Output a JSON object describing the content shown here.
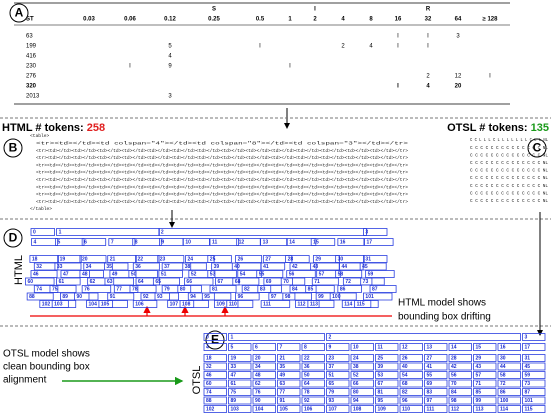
{
  "panels": {
    "a": "A",
    "b": "B",
    "c": "C",
    "d": "D",
    "e": "E"
  },
  "table": {
    "group_header": [
      null,
      null,
      null,
      null,
      "S",
      null,
      null,
      "I",
      null,
      null,
      null,
      "R",
      null,
      null
    ],
    "columns": [
      "ST",
      "0.03",
      "0.06",
      "0.12",
      "0.25",
      "0.5",
      "1",
      "2",
      "4",
      "8",
      "16",
      "32",
      "64",
      "≥ 128"
    ],
    "rows": [
      [
        "63",
        null,
        null,
        null,
        null,
        null,
        null,
        null,
        null,
        null,
        "I",
        "I",
        "3",
        null
      ],
      [
        "199",
        null,
        null,
        "5",
        null,
        "I",
        null,
        null,
        "2",
        "4",
        "I",
        "I",
        null,
        null
      ],
      [
        "416",
        null,
        null,
        "4",
        null,
        null,
        null,
        null,
        null,
        null,
        null,
        null,
        null,
        null
      ],
      [
        "230",
        null,
        "I",
        "9",
        null,
        null,
        "I",
        null,
        null,
        null,
        null,
        null,
        null,
        null
      ],
      [
        "276",
        null,
        null,
        null,
        null,
        null,
        null,
        null,
        null,
        null,
        null,
        "2",
        "12",
        "I"
      ],
      [
        "320",
        null,
        null,
        null,
        null,
        null,
        null,
        null,
        null,
        null,
        "I",
        "4",
        "20",
        null
      ],
      [
        "2013",
        null,
        null,
        "3",
        null,
        null,
        null,
        null,
        null,
        null,
        null,
        null,
        null,
        null
      ]
    ],
    "bold_rows": [
      5
    ]
  },
  "html_tokens": {
    "label": "HTML # tokens:",
    "count": 258
  },
  "otsl_tokens": {
    "label": "OTSL # tokens:",
    "count": 135
  },
  "html_code": [
    "<table>",
    "<tr><td></td><td colspan=\"4\"></td><td colspan=\"8\"></td><td colspan=\"3\"></td></tr>",
    "<tr><td></td><td></td><td></td><td></td><td></td><td></td><td></td><td></td><td></td><td></td><td></td><td></td><td></td><td></td></tr>",
    "<tr><td></td><td></td><td></td><td></td><td></td><td></td><td></td><td></td><td></td><td></td><td></td><td></td><td></td><td></td></tr>",
    "<tr><td></td><td></td><td></td><td></td><td></td><td></td><td></td><td></td><td></td><td></td><td></td><td></td><td></td><td></td></tr>",
    "<tr><td></td><td></td><td></td><td></td><td></td><td></td><td></td><td></td><td></td><td></td><td></td><td></td><td></td><td></td></tr>",
    "<tr><td></td><td></td><td></td><td></td><td></td><td></td><td></td><td></td><td></td><td></td><td></td><td></td><td></td><td></td></tr>",
    "<tr><td></td><td></td><td></td><td></td><td></td><td></td><td></td><td></td><td></td><td></td><td></td><td></td><td></td><td></td></tr>",
    "<tr><td></td><td></td><td></td><td></td><td></td><td></td><td></td><td></td><td></td><td></td><td></td><td></td><td></td><td></td></tr>",
    "<tr><td></td><td></td><td></td><td></td><td></td><td></td><td></td><td></td><td></td><td></td><td></td><td></td><td></td><td></td></tr>",
    "</table>"
  ],
  "otsl_code": [
    "C C L L L C L L L L L L L C L L NL",
    "C C C C C C C C C C C C C C NL",
    "C C C C C C C C C C C C C C NL",
    "C C C C C C C C C C C C C C NL",
    "C C C C C C C C C C C C C C NL",
    "C C C C C C C C C C C C C C NL",
    "C C C C C C C C C C C C C C NL",
    "C C C C C C C C C C C C C C NL",
    "C C C C C C C C C C C C C C NL"
  ],
  "html_boxes": {
    "label": "HTML",
    "rows": [
      [
        0,
        1,
        2,
        3
      ],
      [
        4,
        5,
        6,
        7,
        8,
        9,
        10,
        11,
        12,
        13,
        14,
        15,
        16,
        17
      ],
      [
        18,
        19,
        20,
        21,
        22,
        23,
        24,
        25,
        26,
        27,
        28,
        29,
        30,
        31
      ],
      [
        32,
        33,
        34,
        35,
        36,
        37,
        38,
        39,
        40,
        41,
        42,
        43,
        44,
        45
      ],
      [
        46,
        47,
        48,
        49,
        50,
        51,
        52,
        53,
        54,
        55,
        56,
        57,
        58,
        59
      ],
      [
        60,
        61,
        62,
        63,
        64,
        65,
        66,
        67,
        68,
        69,
        70,
        71,
        72,
        73
      ],
      [
        74,
        75,
        76,
        77,
        78,
        79,
        80,
        81,
        82,
        83,
        84,
        85,
        86,
        87
      ],
      [
        88,
        89,
        90,
        91,
        92,
        93,
        94,
        95,
        96,
        97,
        98,
        99,
        100,
        101
      ],
      [
        102,
        103,
        104,
        105,
        106,
        107,
        108,
        109,
        110,
        111,
        112,
        113,
        114,
        115
      ]
    ]
  },
  "html_note": [
    "HTML model shows",
    "bounding box drifting"
  ],
  "otsl_boxes": {
    "label": "OTSL",
    "rows": [
      [
        0,
        1,
        2,
        3
      ],
      [
        4,
        5,
        6,
        7,
        8,
        9,
        10,
        11,
        12,
        13,
        14,
        15,
        16,
        17
      ],
      [
        18,
        19,
        20,
        21,
        22,
        23,
        24,
        25,
        26,
        27,
        28,
        29,
        30,
        31
      ],
      [
        32,
        33,
        34,
        35,
        36,
        37,
        38,
        39,
        40,
        41,
        42,
        43,
        44,
        45
      ],
      [
        46,
        47,
        48,
        49,
        50,
        51,
        52,
        53,
        54,
        55,
        56,
        57,
        58,
        59
      ],
      [
        60,
        61,
        62,
        63,
        64,
        65,
        66,
        67,
        68,
        69,
        70,
        71,
        72,
        73
      ],
      [
        74,
        75,
        76,
        77,
        78,
        79,
        80,
        81,
        82,
        83,
        84,
        85,
        86,
        87
      ],
      [
        88,
        89,
        90,
        91,
        92,
        93,
        94,
        95,
        96,
        97,
        98,
        99,
        100,
        101
      ],
      [
        102,
        103,
        104,
        105,
        106,
        107,
        108,
        109,
        110,
        111,
        112,
        113,
        114,
        115
      ]
    ]
  },
  "otsl_note": [
    "OTSL model shows",
    "clean bounding box",
    "alignment"
  ]
}
